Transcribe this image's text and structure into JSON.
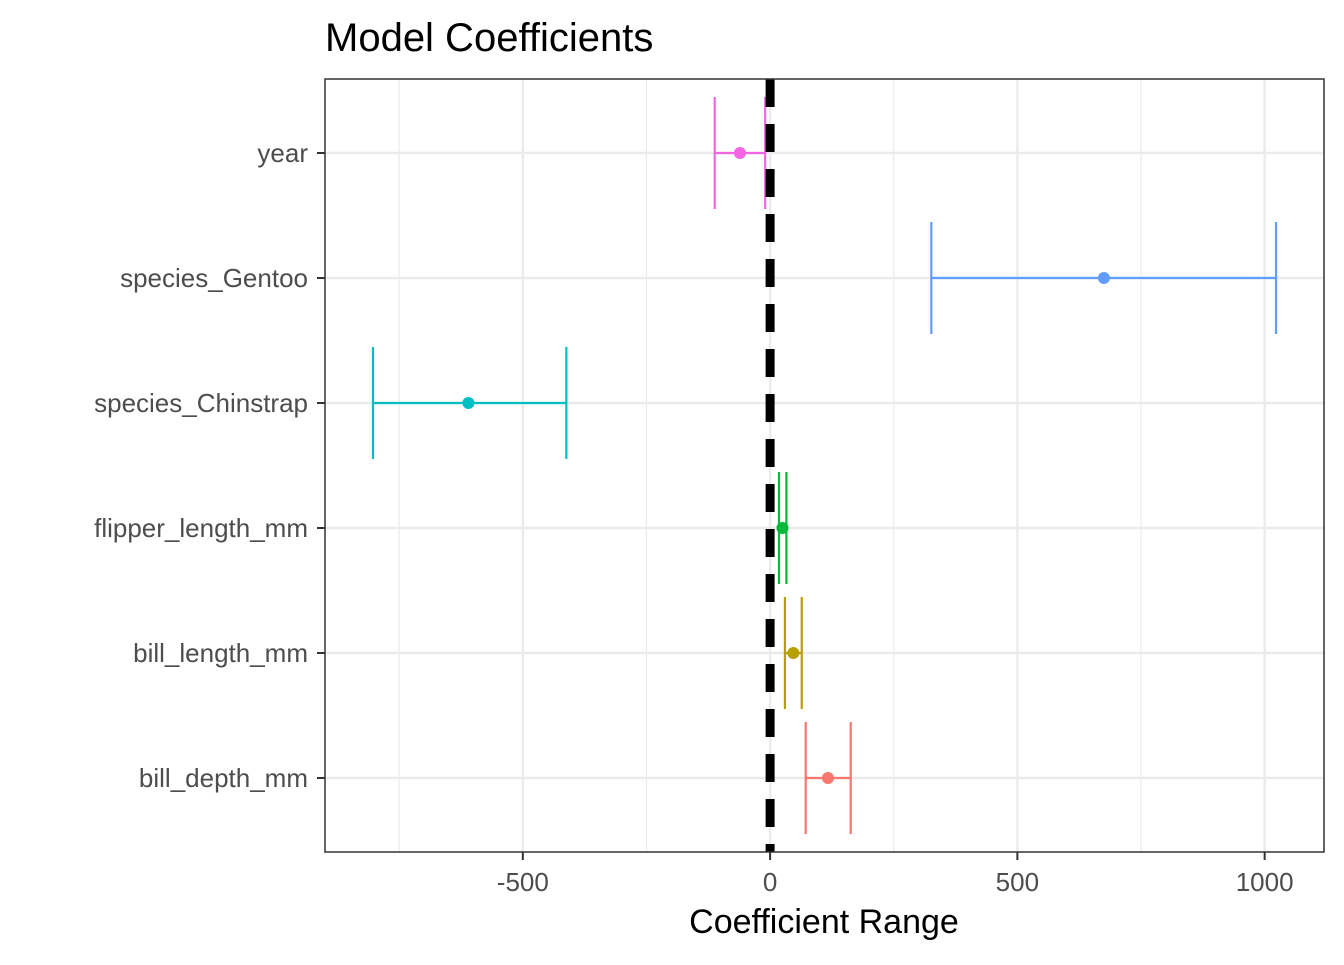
{
  "chart_data": {
    "type": "errorbar",
    "title": "Model Coefficients",
    "xlabel": "Coefficient Range",
    "ylabel": "",
    "xlim": [
      -900,
      1120
    ],
    "x_ticks": [
      -500,
      0,
      500,
      1000
    ],
    "x_tick_labels": [
      "-500",
      "0",
      "500",
      "1000"
    ],
    "reference_line": {
      "x": 0,
      "style": "dashed",
      "color": "#000000"
    },
    "grid": true,
    "legend": "none",
    "categories": [
      "bill_depth_mm",
      "bill_length_mm",
      "flipper_length_mm",
      "species_Chinstrap",
      "species_Gentoo",
      "year"
    ],
    "points": [
      {
        "label": "bill_depth_mm",
        "estimate": 117,
        "lower": 72,
        "upper": 163,
        "color": "#F8766D"
      },
      {
        "label": "bill_length_mm",
        "estimate": 47,
        "lower": 30,
        "upper": 64,
        "color": "#B79F00"
      },
      {
        "label": "flipper_length_mm",
        "estimate": 25,
        "lower": 18,
        "upper": 33,
        "color": "#00BA38"
      },
      {
        "label": "species_Chinstrap",
        "estimate": -610,
        "lower": -803,
        "upper": -412,
        "color": "#00BFC4"
      },
      {
        "label": "species_Gentoo",
        "estimate": 675,
        "lower": 326,
        "upper": 1023,
        "color": "#619CFF"
      },
      {
        "label": "year",
        "estimate": -61,
        "lower": -112,
        "upper": -10,
        "color": "#F564E3"
      }
    ]
  }
}
